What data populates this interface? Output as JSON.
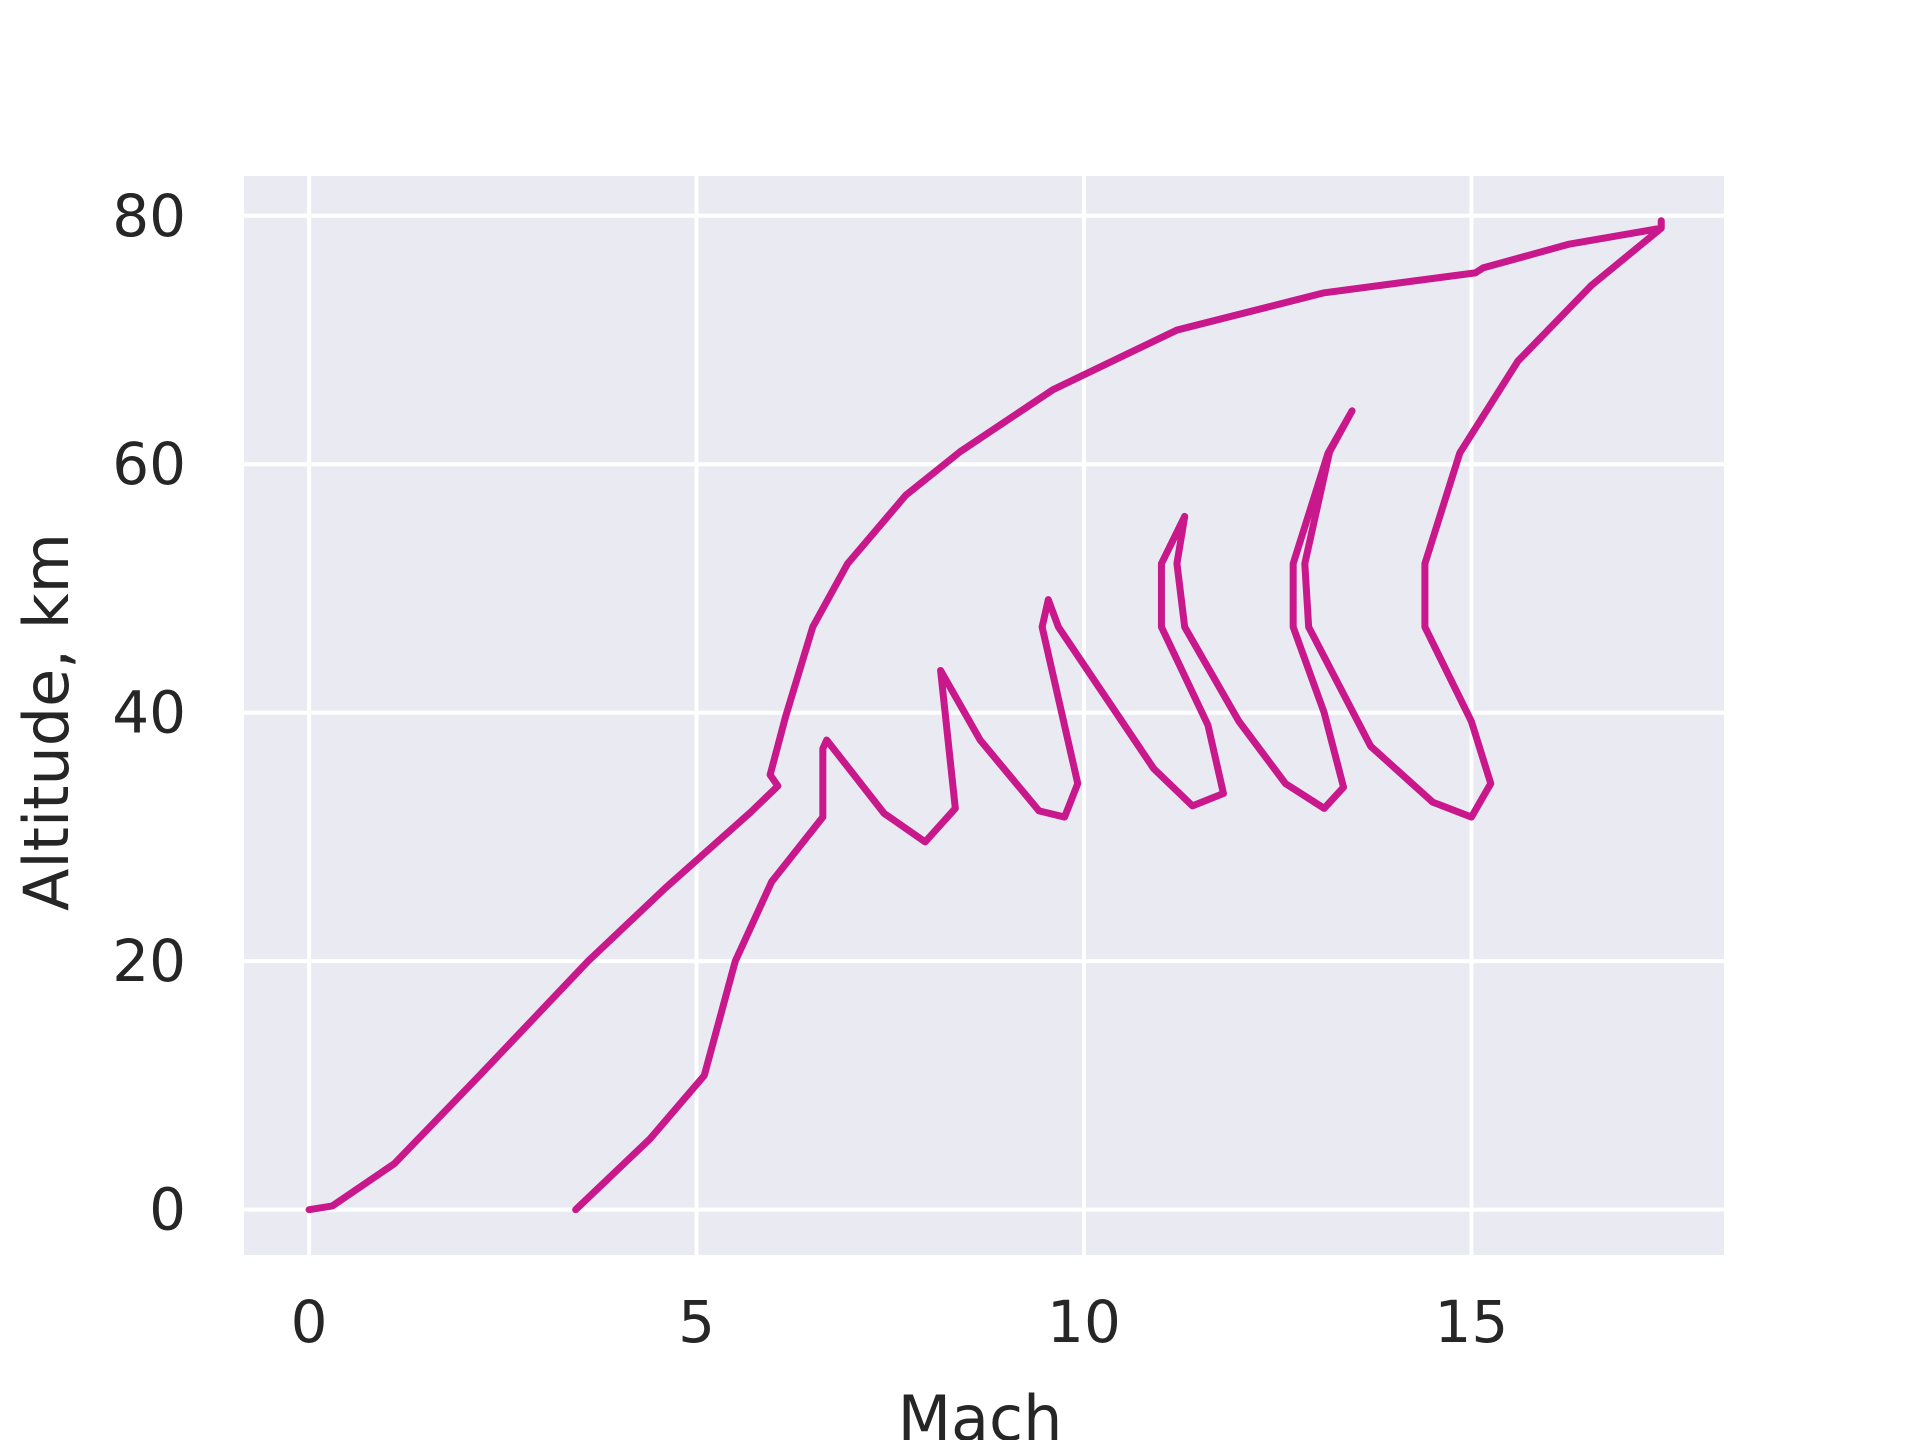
{
  "chart_data": {
    "type": "line",
    "xlabel": "Mach",
    "ylabel": "Altitude, km",
    "xlim": [
      -0.84,
      18.26
    ],
    "ylim": [
      -3.65,
      83.2
    ],
    "xticks": [
      0,
      5,
      10,
      15
    ],
    "yticks": [
      0,
      20,
      40,
      60,
      80
    ],
    "grid": true,
    "background": "#eaeaf2",
    "grid_color": "#ffffff",
    "series": [
      {
        "color": "#c9178c",
        "x": [
          0,
          0.3,
          1.1,
          2.2,
          3.6,
          4.6,
          5.7,
          6.05,
          5.95,
          6.15,
          6.5,
          6.95,
          7.7,
          8.4,
          9.6,
          11.2,
          13.1,
          15.05,
          15.15,
          16.25,
          17.45,
          17.45,
          17.45,
          16.55,
          15.6,
          14.85,
          14.4,
          14.4,
          15.0,
          15.25,
          15.0,
          14.5,
          13.7,
          12.9,
          12.85,
          13.17,
          13.46,
          13.15,
          12.7,
          12.7,
          13.1,
          13.35,
          13.1,
          12.6,
          12.0,
          11.3,
          11.2,
          11.3,
          11.0,
          11.0,
          11.6,
          11.8,
          11.4,
          10.9,
          9.67,
          9.54,
          9.46,
          9.92,
          9.75,
          9.42,
          8.66,
          8.15,
          8.34,
          7.95,
          7.42,
          6.68,
          6.63,
          6.63,
          5.97,
          5.5,
          5.1,
          4.4,
          3.44
        ],
        "values": [
          0,
          0.3,
          3.7,
          10.8,
          20,
          25.9,
          32,
          34.1,
          35,
          39.7,
          46.9,
          52,
          57.5,
          61,
          66,
          70.8,
          73.8,
          75.4,
          75.8,
          77.7,
          79,
          79.6,
          79,
          74.4,
          68.3,
          60.9,
          52,
          46.9,
          39.3,
          34.3,
          31.6,
          32.8,
          37.3,
          46.9,
          52,
          61,
          64.3,
          60.9,
          52,
          46.9,
          40,
          34,
          32.3,
          34.3,
          39.3,
          46.9,
          52,
          55.8,
          52,
          46.9,
          39,
          33.5,
          32.5,
          35.5,
          46.9,
          49.1,
          46.9,
          34.3,
          31.6,
          32.1,
          37.8,
          43.4,
          32.3,
          29.6,
          31.9,
          37.8,
          37.1,
          31.6,
          26.4,
          20,
          10.8,
          5.7,
          0
        ]
      }
    ]
  }
}
